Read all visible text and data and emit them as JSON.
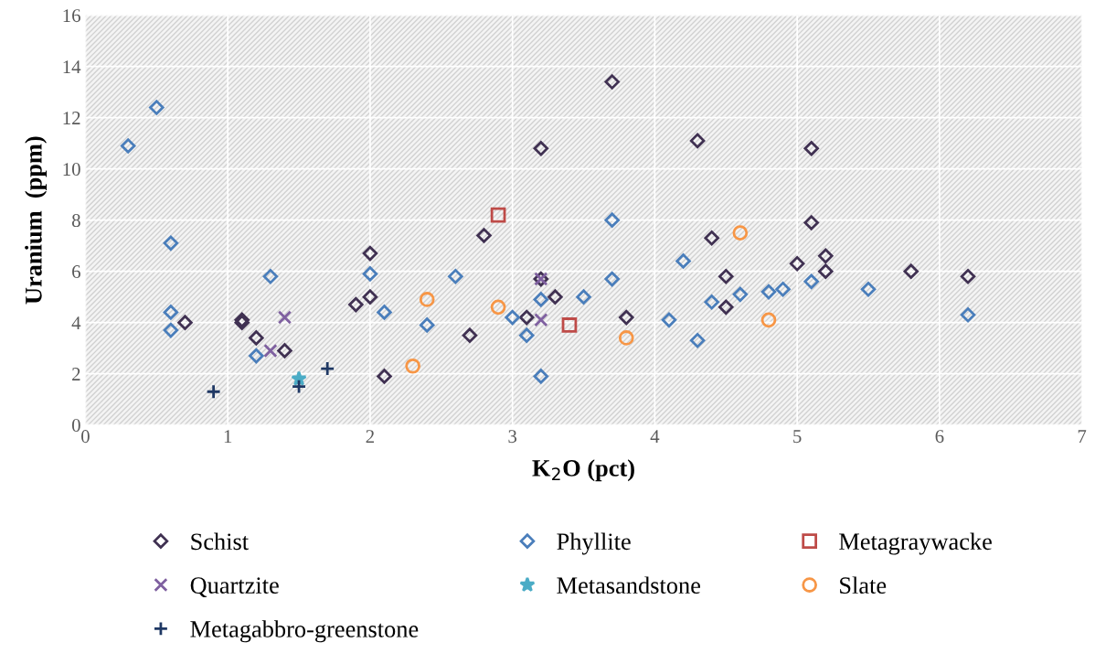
{
  "chart_data": {
    "type": "scatter",
    "xlabel": "K$_{2}$O (pct)",
    "ylabel": "Uranium  (ppm)",
    "xlim": [
      0,
      7
    ],
    "xticks": [
      0,
      1,
      2,
      3,
      4,
      5,
      6,
      7
    ],
    "ylim": [
      0,
      16
    ],
    "yticks": [
      0,
      2,
      4,
      6,
      8,
      10,
      12,
      14,
      16
    ],
    "grid": true,
    "legend": "bottom",
    "series": [
      {
        "name": "Schist",
        "color": "#403152",
        "marker": "diamond",
        "x": [
          0.7,
          1.1,
          1.1,
          1.2,
          1.4,
          1.9,
          2.0,
          2.0,
          2.1,
          2.7,
          2.8,
          3.1,
          3.2,
          3.2,
          3.3,
          3.7,
          3.8,
          4.3,
          4.4,
          4.5,
          4.5,
          5.0,
          5.1,
          5.1,
          5.2,
          5.2,
          5.8,
          6.2
        ],
        "values": [
          4.0,
          4.1,
          4.0,
          3.4,
          2.9,
          4.7,
          6.7,
          5.0,
          1.9,
          3.5,
          7.4,
          4.2,
          10.8,
          5.7,
          5.0,
          13.4,
          4.2,
          11.1,
          7.3,
          5.8,
          4.6,
          6.3,
          10.8,
          7.9,
          6.6,
          6.0,
          6.0,
          5.8
        ]
      },
      {
        "name": "Phyllite",
        "color": "#4a7ebb",
        "marker": "diamond",
        "x": [
          0.3,
          0.5,
          0.6,
          0.6,
          0.6,
          1.2,
          1.3,
          2.0,
          2.1,
          2.4,
          2.6,
          3.0,
          3.1,
          3.2,
          3.2,
          3.5,
          3.7,
          3.7,
          4.1,
          4.2,
          4.3,
          4.4,
          4.6,
          4.8,
          4.9,
          5.1,
          5.5,
          6.2
        ],
        "values": [
          10.9,
          12.4,
          7.1,
          4.4,
          3.7,
          2.7,
          5.8,
          5.9,
          4.4,
          3.9,
          5.8,
          4.2,
          3.5,
          4.9,
          1.9,
          5.0,
          8.0,
          5.7,
          4.1,
          6.4,
          3.3,
          4.8,
          5.1,
          5.2,
          5.3,
          5.6,
          5.3,
          4.3
        ]
      },
      {
        "name": "Metagraywacke",
        "color": "#be4b48",
        "marker": "square",
        "x": [
          2.9,
          3.4
        ],
        "values": [
          8.2,
          3.9
        ]
      },
      {
        "name": "Quartzite",
        "color": "#7f60a0",
        "marker": "cross",
        "x": [
          1.3,
          1.4,
          3.2,
          3.2
        ],
        "values": [
          2.9,
          4.2,
          5.7,
          4.1
        ]
      },
      {
        "name": "Metasandstone",
        "color": "#4bacc6",
        "marker": "star",
        "x": [
          1.5
        ],
        "values": [
          1.8
        ]
      },
      {
        "name": "Slate",
        "color": "#f79646",
        "marker": "circle",
        "x": [
          2.3,
          2.4,
          2.9,
          3.8,
          4.6,
          4.8
        ],
        "values": [
          2.3,
          4.9,
          4.6,
          3.4,
          7.5,
          4.1
        ]
      },
      {
        "name": "Metagabbro-greenstone",
        "color": "#1f3864",
        "marker": "plus",
        "x": [
          0.9,
          1.5,
          1.7
        ],
        "values": [
          1.3,
          1.5,
          2.2
        ]
      }
    ]
  }
}
